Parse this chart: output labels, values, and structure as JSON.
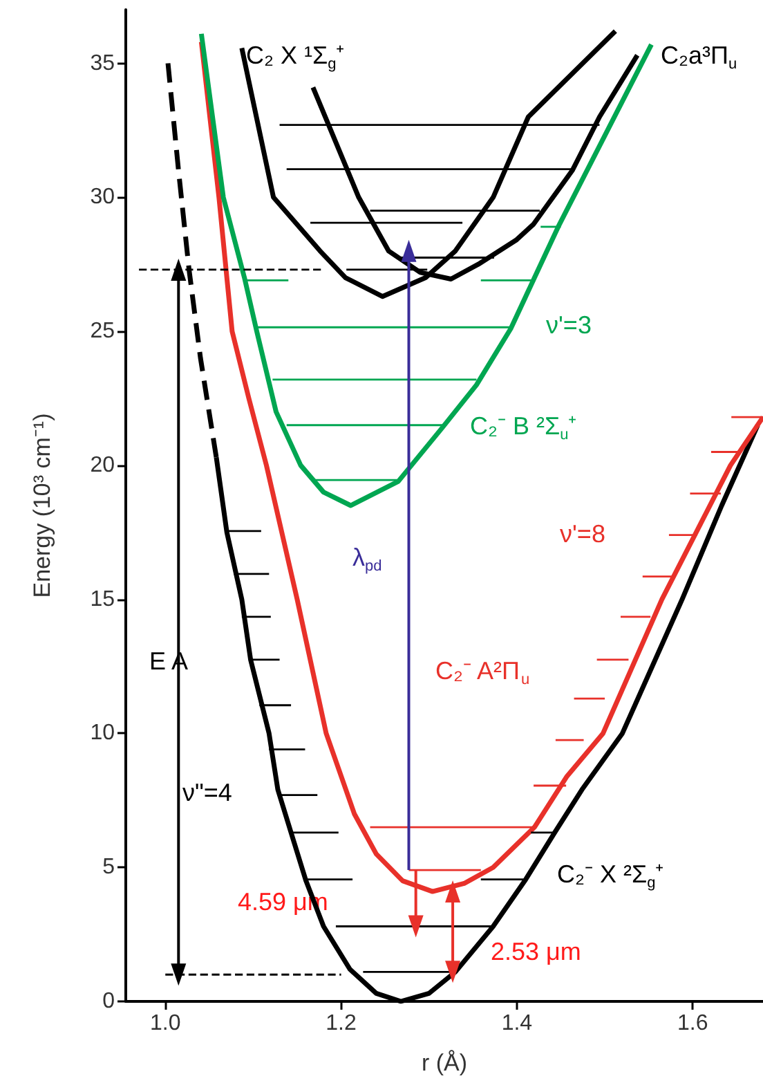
{
  "chart_data": {
    "type": "line",
    "xlabel": "r (Å)",
    "ylabel": "Energy (10³ cm⁻¹)",
    "xlim": [
      0.955,
      1.68
    ],
    "ylim": [
      0,
      37
    ],
    "xticks": [
      {
        "value": 1.0,
        "label": "1.0"
      },
      {
        "value": 1.2,
        "label": "1.2"
      },
      {
        "value": 1.4,
        "label": "1.4"
      },
      {
        "value": 1.6,
        "label": "1.6"
      }
    ],
    "yticks": [
      0,
      5,
      10,
      15,
      20,
      25,
      30,
      35
    ],
    "series": [
      {
        "color": "#000000",
        "x": [
          1.058,
          1.07,
          1.087,
          1.097,
          1.118,
          1.128,
          1.143,
          1.16,
          1.18,
          1.21,
          1.24,
          1.268,
          1.3,
          1.33,
          1.373,
          1.41,
          1.443,
          1.474,
          1.52,
          1.588,
          1.633,
          1.674
        ],
        "values": [
          20.3,
          17.5,
          15,
          12.75,
          10,
          7.9,
          6.3,
          4.5,
          2.8,
          1.2,
          0.3,
          0,
          0.3,
          1.1,
          2.8,
          4.55,
          6.3,
          7.9,
          10,
          15,
          18.5,
          21.5
        ]
      },
      {
        "color": "#000000",
        "line_style": "dashed",
        "x": [
          1.003,
          1.015,
          1.027,
          1.04,
          1.058
        ],
        "values": [
          35,
          31,
          27.3,
          24,
          20.3
        ]
      },
      {
        "color": "#e8312a",
        "x": [
          1.041,
          1.061,
          1.076,
          1.095,
          1.115,
          1.15,
          1.183,
          1.215,
          1.24,
          1.27,
          1.304,
          1.34,
          1.373,
          1.42,
          1.457,
          1.498,
          1.565,
          1.643,
          1.68
        ],
        "values": [
          35.8,
          30,
          25,
          22.5,
          20,
          15,
          10,
          7,
          5.5,
          4.5,
          4.1,
          4.4,
          5,
          6.5,
          8.4,
          10,
          15,
          20,
          21.8
        ]
      },
      {
        "color": "#00a651",
        "x": [
          1.041,
          1.066,
          1.09,
          1.104,
          1.126,
          1.154,
          1.18,
          1.211,
          1.265,
          1.28,
          1.315,
          1.354,
          1.393,
          1.42,
          1.447,
          1.553
        ],
        "values": [
          36.1,
          30,
          27,
          25,
          22,
          20,
          19,
          18.5,
          19.4,
          20,
          21.4,
          23,
          25.1,
          27,
          28.9,
          35.7
        ]
      },
      {
        "color": "#000000",
        "x": [
          1.087,
          1.123,
          1.176,
          1.205,
          1.247,
          1.296,
          1.33,
          1.373,
          1.413,
          1.512
        ],
        "values": [
          35.57,
          30,
          28,
          27,
          26.3,
          27,
          28,
          30,
          33,
          36.2
        ]
      },
      {
        "color": "#000000",
        "x": [
          1.168,
          1.22,
          1.254,
          1.29,
          1.325,
          1.356,
          1.399,
          1.419,
          1.463,
          1.494,
          1.537
        ],
        "values": [
          34.1,
          30,
          28,
          27.2,
          26.95,
          27.5,
          28.4,
          29,
          31,
          33,
          35.3
        ]
      },
      {
        "color": "#000000",
        "x": [
          1.07,
          1.109
        ],
        "values": [
          17.55,
          17.55
        ]
      },
      {
        "color": "#000000",
        "x": [
          1.078,
          1.118
        ],
        "values": [
          15.95,
          15.95
        ]
      },
      {
        "color": "#000000",
        "x": [
          1.087,
          1.12
        ],
        "values": [
          14.35,
          14.35
        ]
      },
      {
        "color": "#000000",
        "x": [
          1.097,
          1.13
        ],
        "values": [
          12.75,
          12.75
        ]
      },
      {
        "color": "#000000",
        "x": [
          1.107,
          1.143
        ],
        "values": [
          11.05,
          11.05
        ]
      },
      {
        "color": "#000000",
        "x": [
          1.118,
          1.159
        ],
        "values": [
          9.4,
          9.4
        ]
      },
      {
        "color": "#000000",
        "x": [
          1.128,
          1.173
        ],
        "values": [
          7.7,
          7.7
        ]
      },
      {
        "color": "#000000",
        "x": [
          1.143,
          1.197
        ],
        "values": [
          6.3,
          6.3
        ]
      },
      {
        "color": "#000000",
        "x": [
          1.16,
          1.213
        ],
        "values": [
          4.55,
          4.55
        ]
      },
      {
        "color": "#000000",
        "x": [
          1.194,
          1.373
        ],
        "values": [
          2.8,
          2.8
        ]
      },
      {
        "color": "#000000",
        "x": [
          1.225,
          1.328
        ],
        "values": [
          1.1,
          1.1
        ]
      },
      {
        "color": "#000000",
        "x": [
          1.416,
          1.443
        ],
        "values": [
          6.3,
          6.3
        ]
      },
      {
        "color": "#000000",
        "x": [
          1.359,
          1.41
        ],
        "values": [
          4.55,
          4.55
        ]
      },
      {
        "color": "#e8312a",
        "x": [
          1.233,
          1.42
        ],
        "values": [
          6.5,
          6.5
        ]
      },
      {
        "color": "#e8312a",
        "x": [
          1.277,
          1.359
        ],
        "values": [
          4.9,
          4.9
        ]
      },
      {
        "color": "#e8312a",
        "x": [
          1.644,
          1.68
        ],
        "values": [
          21.8,
          21.8
        ]
      },
      {
        "color": "#e8312a",
        "x": [
          1.621,
          1.655
        ],
        "values": [
          20.5,
          20.5
        ]
      },
      {
        "color": "#e8312a",
        "x": [
          1.597,
          1.632
        ],
        "values": [
          18.95,
          18.95
        ]
      },
      {
        "color": "#e8312a",
        "x": [
          1.573,
          1.605
        ],
        "values": [
          17.4,
          17.4
        ]
      },
      {
        "color": "#e8312a",
        "x": [
          1.543,
          1.578
        ],
        "values": [
          15.85,
          15.85
        ]
      },
      {
        "color": "#e8312a",
        "x": [
          1.518,
          1.552
        ],
        "values": [
          14.35,
          14.35
        ]
      },
      {
        "color": "#e8312a",
        "x": [
          1.491,
          1.527
        ],
        "values": [
          12.75,
          12.75
        ]
      },
      {
        "color": "#e8312a",
        "x": [
          1.465,
          1.5
        ],
        "values": [
          11.3,
          11.3
        ]
      },
      {
        "color": "#e8312a",
        "x": [
          1.444,
          1.476
        ],
        "values": [
          9.75,
          9.75
        ]
      },
      {
        "color": "#e8312a",
        "x": [
          1.419,
          1.456
        ],
        "values": [
          8.05,
          8.05
        ]
      },
      {
        "color": "#00a651",
        "x": [
          1.17,
          1.265
        ],
        "values": [
          19.45,
          19.45
        ]
      },
      {
        "color": "#00a651",
        "x": [
          1.138,
          1.316
        ],
        "values": [
          21.5,
          21.5
        ]
      },
      {
        "color": "#00a651",
        "x": [
          1.122,
          1.354
        ],
        "values": [
          23.2,
          23.2
        ]
      },
      {
        "color": "#00a651",
        "x": [
          1.104,
          1.393
        ],
        "values": [
          25.15,
          25.15
        ]
      },
      {
        "color": "#00a651",
        "x": [
          1.09,
          1.14
        ],
        "values": [
          26.9,
          26.9
        ]
      },
      {
        "color": "#00a651",
        "x": [
          1.359,
          1.42
        ],
        "values": [
          26.9,
          26.9
        ]
      },
      {
        "color": "#00a651",
        "x": [
          1.427,
          1.45
        ],
        "values": [
          28.9,
          28.9
        ]
      },
      {
        "color": "#000000",
        "x": [
          1.13,
          1.494
        ],
        "values": [
          32.7,
          32.7
        ]
      },
      {
        "color": "#000000",
        "x": [
          1.138,
          1.463
        ],
        "values": [
          31.05,
          31.05
        ]
      },
      {
        "color": "#000000",
        "x": [
          1.233,
          1.426
        ],
        "values": [
          29.5,
          29.5
        ]
      },
      {
        "color": "#000000",
        "x": [
          1.165,
          1.338
        ],
        "values": [
          29.05,
          29.05
        ]
      },
      {
        "color": "#000000",
        "x": [
          1.267,
          1.374
        ],
        "values": [
          27.75,
          27.75
        ]
      },
      {
        "color": "#000000",
        "x": [
          1.206,
          1.298
        ],
        "values": [
          27.3,
          27.3
        ]
      },
      {
        "color": "#000000",
        "line_style": "dashed",
        "x": [
          0.97,
          1.18
        ],
        "values": [
          27.3,
          27.3
        ]
      },
      {
        "color": "#000000",
        "line_style": "dashed",
        "x": [
          1.0,
          1.2
        ],
        "values": [
          1.0,
          1.0
        ]
      },
      {
        "color": "#3a2d99",
        "marker": "triangle",
        "x": [
          1.277,
          1.277
        ],
        "values": [
          4.9,
          28.0
        ]
      },
      {
        "color": "#000000",
        "marker": "triangle",
        "x": [
          1.015,
          1.015,
          1.015
        ],
        "values": [
          1.0,
          14,
          27.3
        ]
      },
      {
        "color": "#e8312a",
        "marker": "triangle",
        "x": [
          1.285,
          1.285
        ],
        "values": [
          4.9,
          2.8
        ]
      },
      {
        "color": "#e8312a",
        "marker": "triangle",
        "x": [
          1.327,
          1.327,
          1.327
        ],
        "values": [
          1.1,
          2.6,
          4.1
        ]
      }
    ],
    "annotations": [
      "C₂ X ¹Σ$_{g}$⁺",
      "C₂a³Π$_{u}$",
      "ν'=3",
      "C₂⁻ B ²Σ$_{u}$⁺",
      "λ$_{pd}$",
      "ν'=8",
      "C₂⁻ A²Π$_{u}$",
      "E A",
      "ν\"=4",
      "C₂⁻ X ²Σ$_{g}$⁺",
      "4.59 μm",
      "2.53 μm"
    ]
  }
}
